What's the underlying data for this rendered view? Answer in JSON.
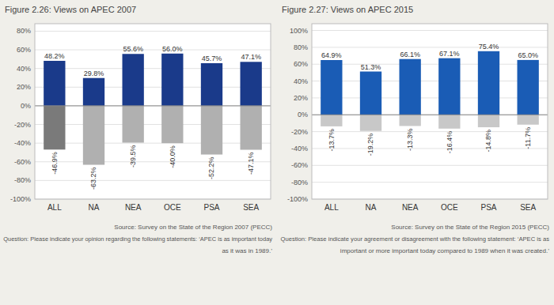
{
  "chart_data": [
    {
      "type": "bar",
      "title": "Figure 2.26: Views on APEC 2007",
      "categories": [
        "ALL",
        "NA",
        "NEA",
        "OCE",
        "PSA",
        "SEA"
      ],
      "series": [
        {
          "color": "#1a3a8a",
          "values": [
            48.2,
            29.8,
            55.6,
            56.0,
            45.7,
            47.1
          ],
          "value_labels": [
            "48.2%",
            "29.8%",
            "55.6%",
            "56.0%",
            "45.7%",
            "47.1%"
          ]
        },
        {
          "colors": [
            "#7a7a7a",
            "#b0b0b0",
            "#b0b0b0",
            "#b0b0b0",
            "#b0b0b0",
            "#b0b0b0"
          ],
          "values": [
            -46.9,
            -63.2,
            -39.5,
            -40.0,
            -52.2,
            -47.1
          ],
          "value_labels": [
            "-46.9%",
            "-63.2%",
            "-39.5%",
            "-40.0%",
            "-52.2%",
            "-47.1%"
          ]
        }
      ],
      "stacked": true,
      "data_labels": true,
      "grid": true,
      "ylim": [
        -100,
        88
      ],
      "yticks": [
        {
          "value": -100,
          "label": "-100%"
        },
        {
          "value": -80,
          "label": "-80%"
        },
        {
          "value": -60,
          "label": "-60%"
        },
        {
          "value": -40,
          "label": "-40%"
        },
        {
          "value": -20,
          "label": "-20%"
        },
        {
          "value": 0,
          "label": "0%"
        },
        {
          "value": 20,
          "label": "20%"
        },
        {
          "value": 40,
          "label": "40%"
        },
        {
          "value": 60,
          "label": "60%"
        },
        {
          "value": 80,
          "label": "80%"
        }
      ],
      "annotations": [
        "Source: Survey on the State of the Region 2007 (PECC)",
        "Question: Please indicate your opinion regarding the following statements: ‘APEC is as important today",
        "as it was in 1989.’"
      ]
    },
    {
      "type": "bar",
      "title": "Figure 2.27: Views on APEC 2015",
      "categories": [
        "ALL",
        "NA",
        "NEA",
        "OCE",
        "PSA",
        "SEA"
      ],
      "series": [
        {
          "color": "#1a5cb5",
          "values": [
            64.9,
            51.3,
            66.1,
            67.1,
            75.4,
            65.0
          ],
          "value_labels": [
            "64.9%",
            "51.3%",
            "66.1%",
            "67.1%",
            "75.4%",
            "65.0%"
          ]
        },
        {
          "color": "#c8c8c8",
          "values": [
            -13.7,
            -19.2,
            -13.3,
            -16.4,
            -14.8,
            -11.7
          ],
          "value_labels": [
            "-13.7%",
            "-19.2%",
            "-13.3%",
            "-16.4%",
            "-14.8%",
            "-11.7%"
          ]
        }
      ],
      "stacked": true,
      "data_labels": true,
      "grid": true,
      "ylim": [
        -100,
        108
      ],
      "yticks": [
        {
          "value": -100,
          "label": "-100%"
        },
        {
          "value": -80,
          "label": "-80%"
        },
        {
          "value": -60,
          "label": "-60%"
        },
        {
          "value": -40,
          "label": "-40%"
        },
        {
          "value": -20,
          "label": "-20%"
        },
        {
          "value": 0,
          "label": "0%"
        },
        {
          "value": 20,
          "label": "20%"
        },
        {
          "value": 40,
          "label": "40%"
        },
        {
          "value": 60,
          "label": "60%"
        },
        {
          "value": 80,
          "label": "80%"
        },
        {
          "value": 100,
          "label": "100%"
        }
      ],
      "annotations": [
        "Source: Survey on the State of the Region 2015 (PECC)",
        "Question: Please indicate your agreement or disagreement with the following statement: ‘APEC is as",
        "important or more important today compared to 1989 when it was created.’"
      ]
    }
  ]
}
